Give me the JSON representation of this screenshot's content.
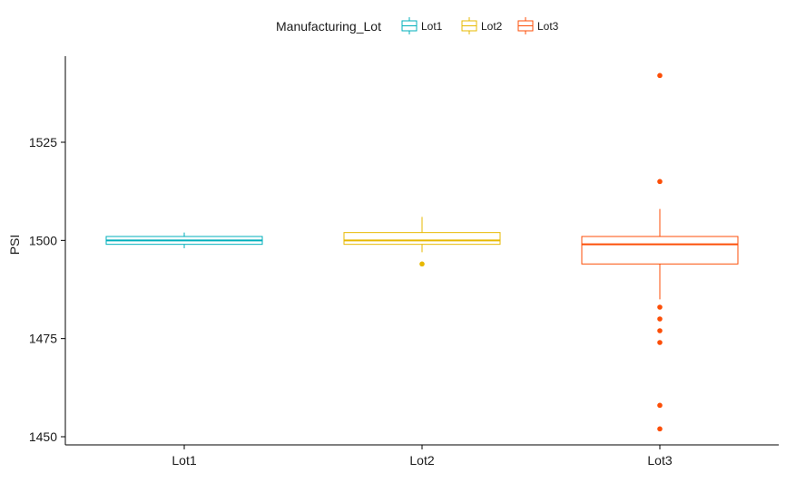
{
  "chart_data": {
    "type": "box",
    "title": "",
    "xlabel": "",
    "ylabel": "PSI",
    "ylim": [
      1450,
      1542
    ],
    "yticks": [
      1450,
      1475,
      1500,
      1525
    ],
    "grid": false,
    "legend": {
      "title": "Manufacturing_Lot",
      "placement": "top",
      "entries": [
        "Lot1",
        "Lot2",
        "Lot3"
      ]
    },
    "categories": [
      "Lot1",
      "Lot2",
      "Lot3"
    ],
    "series": [
      {
        "name": "Lot1",
        "color": "#00AFBB",
        "min": 1498,
        "q1": 1499,
        "median": 1500,
        "q3": 1501,
        "max": 1502,
        "outliers": []
      },
      {
        "name": "Lot2",
        "color": "#E7B800",
        "min": 1497,
        "q1": 1499,
        "median": 1500,
        "q3": 1502,
        "max": 1506,
        "outliers": [
          1494
        ]
      },
      {
        "name": "Lot3",
        "color": "#FC4E07",
        "min": 1485,
        "q1": 1494,
        "median": 1499,
        "q3": 1501,
        "max": 1508,
        "outliers": [
          1452,
          1458,
          1474,
          1477,
          1480,
          1483,
          1515,
          1542
        ]
      }
    ]
  }
}
